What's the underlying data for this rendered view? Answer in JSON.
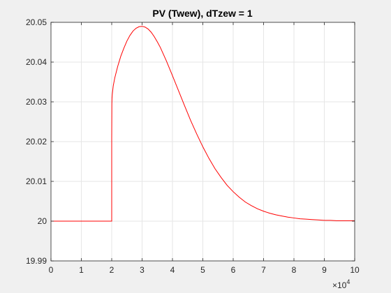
{
  "chart_data": {
    "type": "line",
    "title": "PV (Twew), dTzew = 1",
    "xlabel": "",
    "ylabel": "",
    "xlim": [
      0,
      100000
    ],
    "ylim": [
      19.99,
      20.05
    ],
    "x_ticks": [
      0,
      10000,
      20000,
      30000,
      40000,
      50000,
      60000,
      70000,
      80000,
      90000,
      100000
    ],
    "x_tick_labels": [
      "0",
      "1",
      "2",
      "3",
      "4",
      "5",
      "6",
      "7",
      "8",
      "9",
      "10"
    ],
    "x_exponent_label": "×10",
    "x_exponent_power": "4",
    "y_ticks": [
      19.99,
      20.0,
      20.01,
      20.02,
      20.03,
      20.04,
      20.05
    ],
    "y_tick_labels": [
      "19.99",
      "20",
      "20.01",
      "20.02",
      "20.03",
      "20.04",
      "20.05"
    ],
    "grid": true,
    "series": [
      {
        "color": "#ff0000",
        "x": [
          0,
          19990,
          20000,
          20000,
          20000,
          20050,
          20100,
          20200,
          20500,
          21000,
          21500,
          22000,
          23000,
          24000,
          25000,
          26000,
          27000,
          28000,
          29000,
          30000,
          31000,
          32000,
          33000,
          34000,
          35000,
          36000,
          38000,
          40000,
          42000,
          44000,
          46000,
          48000,
          50000,
          52000,
          54000,
          56000,
          58000,
          60000,
          62000,
          64000,
          66000,
          68000,
          70000,
          72000,
          74000,
          76000,
          78000,
          80000,
          82000,
          84000,
          86000,
          88000,
          90000,
          92000,
          94000,
          96000,
          98000,
          100000
        ],
        "y": [
          20.0,
          20.0,
          20.0,
          20.013,
          20.021,
          20.0295,
          20.031,
          20.032,
          20.034,
          20.036,
          20.0375,
          20.039,
          20.0415,
          20.0435,
          20.0453,
          20.0467,
          20.0478,
          20.0485,
          20.0489,
          20.049,
          20.0488,
          20.0483,
          20.0475,
          20.0464,
          20.0451,
          20.0437,
          20.0403,
          20.0366,
          20.0328,
          20.029,
          20.0253,
          20.0219,
          20.0187,
          20.0158,
          20.0132,
          20.011,
          20.009,
          20.0074,
          20.006,
          20.0048,
          20.0039,
          20.0031,
          20.0025,
          20.002,
          20.0016,
          20.0013,
          20.001,
          20.0008,
          20.0006,
          20.0005,
          20.0004,
          20.0003,
          20.0002,
          20.0002,
          20.0001,
          20.0001,
          20.0001,
          20.0001
        ]
      }
    ]
  }
}
